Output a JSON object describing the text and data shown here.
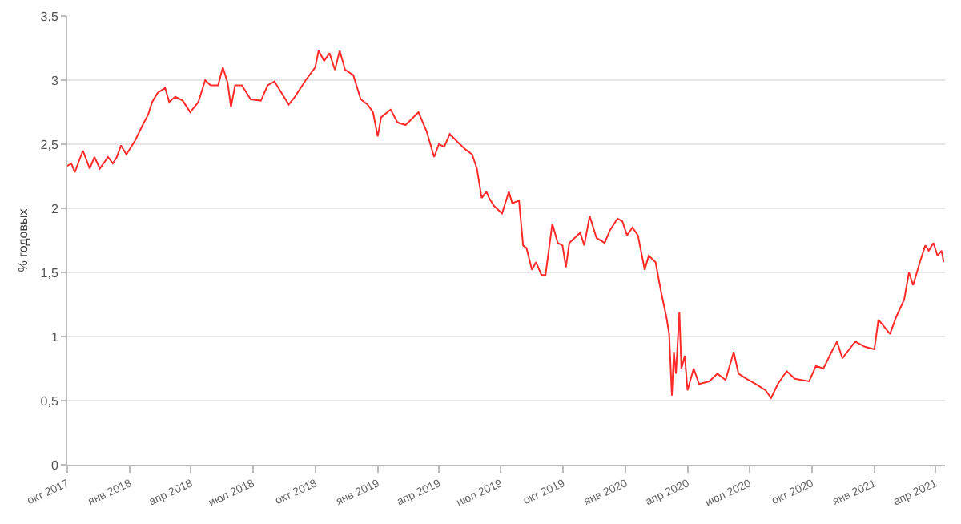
{
  "chart_data": {
    "type": "line",
    "ylabel": "% годовых",
    "x": [
      "2017-10-01",
      "2017-10-07",
      "2017-10-12",
      "2017-10-24",
      "2017-11-03",
      "2017-11-10",
      "2017-11-18",
      "2017-11-30",
      "2017-12-07",
      "2017-12-13",
      "2017-12-19",
      "2017-12-27",
      "2018-01-09",
      "2018-01-20",
      "2018-01-28",
      "2018-02-03",
      "2018-02-11",
      "2018-02-22",
      "2018-02-28",
      "2018-03-09",
      "2018-03-20",
      "2018-03-31",
      "2018-04-12",
      "2018-04-22",
      "2018-04-30",
      "2018-05-11",
      "2018-05-18",
      "2018-05-25",
      "2018-05-30",
      "2018-06-05",
      "2018-06-15",
      "2018-06-28",
      "2018-07-13",
      "2018-07-23",
      "2018-08-02",
      "2018-08-10",
      "2018-08-23",
      "2018-09-01",
      "2018-09-17",
      "2018-10-01",
      "2018-10-06",
      "2018-10-14",
      "2018-10-22",
      "2018-10-30",
      "2018-11-06",
      "2018-11-14",
      "2018-11-26",
      "2018-12-07",
      "2018-12-17",
      "2018-12-25",
      "2019-01-01",
      "2019-01-06",
      "2019-01-20",
      "2019-01-30",
      "2019-02-11",
      "2019-03-02",
      "2019-03-14",
      "2019-03-25",
      "2019-04-01",
      "2019-04-09",
      "2019-04-17",
      "2019-04-28",
      "2019-05-10",
      "2019-05-20",
      "2019-05-27",
      "2019-06-03",
      "2019-06-10",
      "2019-06-14",
      "2019-06-21",
      "2019-07-03",
      "2019-07-13",
      "2019-07-18",
      "2019-07-28",
      "2019-08-03",
      "2019-08-08",
      "2019-08-16",
      "2019-08-22",
      "2019-08-30",
      "2019-09-05",
      "2019-09-15",
      "2019-09-23",
      "2019-09-30",
      "2019-10-05",
      "2019-10-10",
      "2019-10-26",
      "2019-11-01",
      "2019-11-09",
      "2019-11-19",
      "2019-12-01",
      "2019-12-09",
      "2019-12-20",
      "2019-12-27",
      "2020-01-03",
      "2020-01-11",
      "2020-01-19",
      "2020-01-29",
      "2020-02-04",
      "2020-02-14",
      "2020-02-22",
      "2020-03-01",
      "2020-03-05",
      "2020-03-09",
      "2020-03-12",
      "2020-03-15",
      "2020-03-20",
      "2020-03-23",
      "2020-03-28",
      "2020-04-01",
      "2020-04-10",
      "2020-04-18",
      "2020-05-03",
      "2020-05-15",
      "2020-05-27",
      "2020-06-08",
      "2020-06-15",
      "2020-06-27",
      "2020-07-10",
      "2020-07-25",
      "2020-08-02",
      "2020-08-12",
      "2020-08-25",
      "2020-09-06",
      "2020-09-27",
      "2020-10-07",
      "2020-10-18",
      "2020-10-30",
      "2020-11-07",
      "2020-11-15",
      "2020-11-25",
      "2020-12-04",
      "2020-12-18",
      "2021-01-01",
      "2021-01-07",
      "2021-01-18",
      "2021-01-24",
      "2021-02-02",
      "2021-02-14",
      "2021-02-21",
      "2021-02-27",
      "2021-03-09",
      "2021-03-17",
      "2021-03-22",
      "2021-03-29",
      "2021-04-04",
      "2021-04-10",
      "2021-04-13"
    ],
    "series": [
      {
        "color": "#ff2a2a",
        "values": [
          2.33,
          2.35,
          2.28,
          2.45,
          2.31,
          2.4,
          2.31,
          2.4,
          2.35,
          2.4,
          2.49,
          2.42,
          2.53,
          2.65,
          2.73,
          2.83,
          2.9,
          2.94,
          2.83,
          2.87,
          2.84,
          2.75,
          2.83,
          3.0,
          2.96,
          2.96,
          3.1,
          2.98,
          2.79,
          2.96,
          2.96,
          2.85,
          2.84,
          2.96,
          2.99,
          2.92,
          2.81,
          2.87,
          3.0,
          3.1,
          3.23,
          3.15,
          3.21,
          3.08,
          3.23,
          3.08,
          3.04,
          2.85,
          2.81,
          2.75,
          2.56,
          2.71,
          2.77,
          2.67,
          2.65,
          2.75,
          2.6,
          2.4,
          2.5,
          2.48,
          2.58,
          2.52,
          2.46,
          2.42,
          2.31,
          2.08,
          2.13,
          2.08,
          2.02,
          1.96,
          2.13,
          2.04,
          2.06,
          1.71,
          1.69,
          1.52,
          1.58,
          1.48,
          1.48,
          1.88,
          1.73,
          1.71,
          1.54,
          1.73,
          1.81,
          1.71,
          1.94,
          1.77,
          1.73,
          1.83,
          1.92,
          1.9,
          1.79,
          1.85,
          1.79,
          1.52,
          1.63,
          1.58,
          1.35,
          1.15,
          1.02,
          0.54,
          0.88,
          0.71,
          1.19,
          0.75,
          0.85,
          0.58,
          0.75,
          0.63,
          0.65,
          0.71,
          0.66,
          0.88,
          0.71,
          0.67,
          0.63,
          0.58,
          0.52,
          0.63,
          0.73,
          0.67,
          0.65,
          0.77,
          0.75,
          0.88,
          0.96,
          0.83,
          0.9,
          0.96,
          0.92,
          0.9,
          1.13,
          1.06,
          1.02,
          1.15,
          1.29,
          1.5,
          1.4,
          1.58,
          1.71,
          1.67,
          1.73,
          1.63,
          1.67,
          1.58
        ]
      }
    ],
    "xlim": [
      "2017-10-01",
      "2021-04-15"
    ],
    "xticks": [
      {
        "value": "2017-10-01",
        "label": "окт 2017"
      },
      {
        "value": "2018-01-01",
        "label": "янв 2018"
      },
      {
        "value": "2018-04-01",
        "label": "апр 2018"
      },
      {
        "value": "2018-07-01",
        "label": "июл 2018"
      },
      {
        "value": "2018-10-01",
        "label": "окт 2018"
      },
      {
        "value": "2019-01-01",
        "label": "янв 2019"
      },
      {
        "value": "2019-04-01",
        "label": "апр 2019"
      },
      {
        "value": "2019-07-01",
        "label": "июл 2019"
      },
      {
        "value": "2019-10-01",
        "label": "окт 2019"
      },
      {
        "value": "2020-01-01",
        "label": "янв 2020"
      },
      {
        "value": "2020-04-01",
        "label": "апр 2020"
      },
      {
        "value": "2020-07-01",
        "label": "июл 2020"
      },
      {
        "value": "2020-10-01",
        "label": "окт 2020"
      },
      {
        "value": "2021-01-01",
        "label": "янв 2021"
      },
      {
        "value": "2021-04-01",
        "label": "апр 2021"
      }
    ],
    "ylim": [
      0,
      3.5
    ],
    "yticks": [
      0,
      {
        "value": 0.5,
        "label": "0,5"
      },
      1,
      {
        "value": 1.5,
        "label": "1,5"
      },
      2,
      {
        "value": 2.5,
        "label": "2,5"
      },
      3,
      {
        "value": 3.5,
        "label": "3,5"
      }
    ],
    "grid": "y",
    "marker": "none",
    "line_style": "solid"
  }
}
